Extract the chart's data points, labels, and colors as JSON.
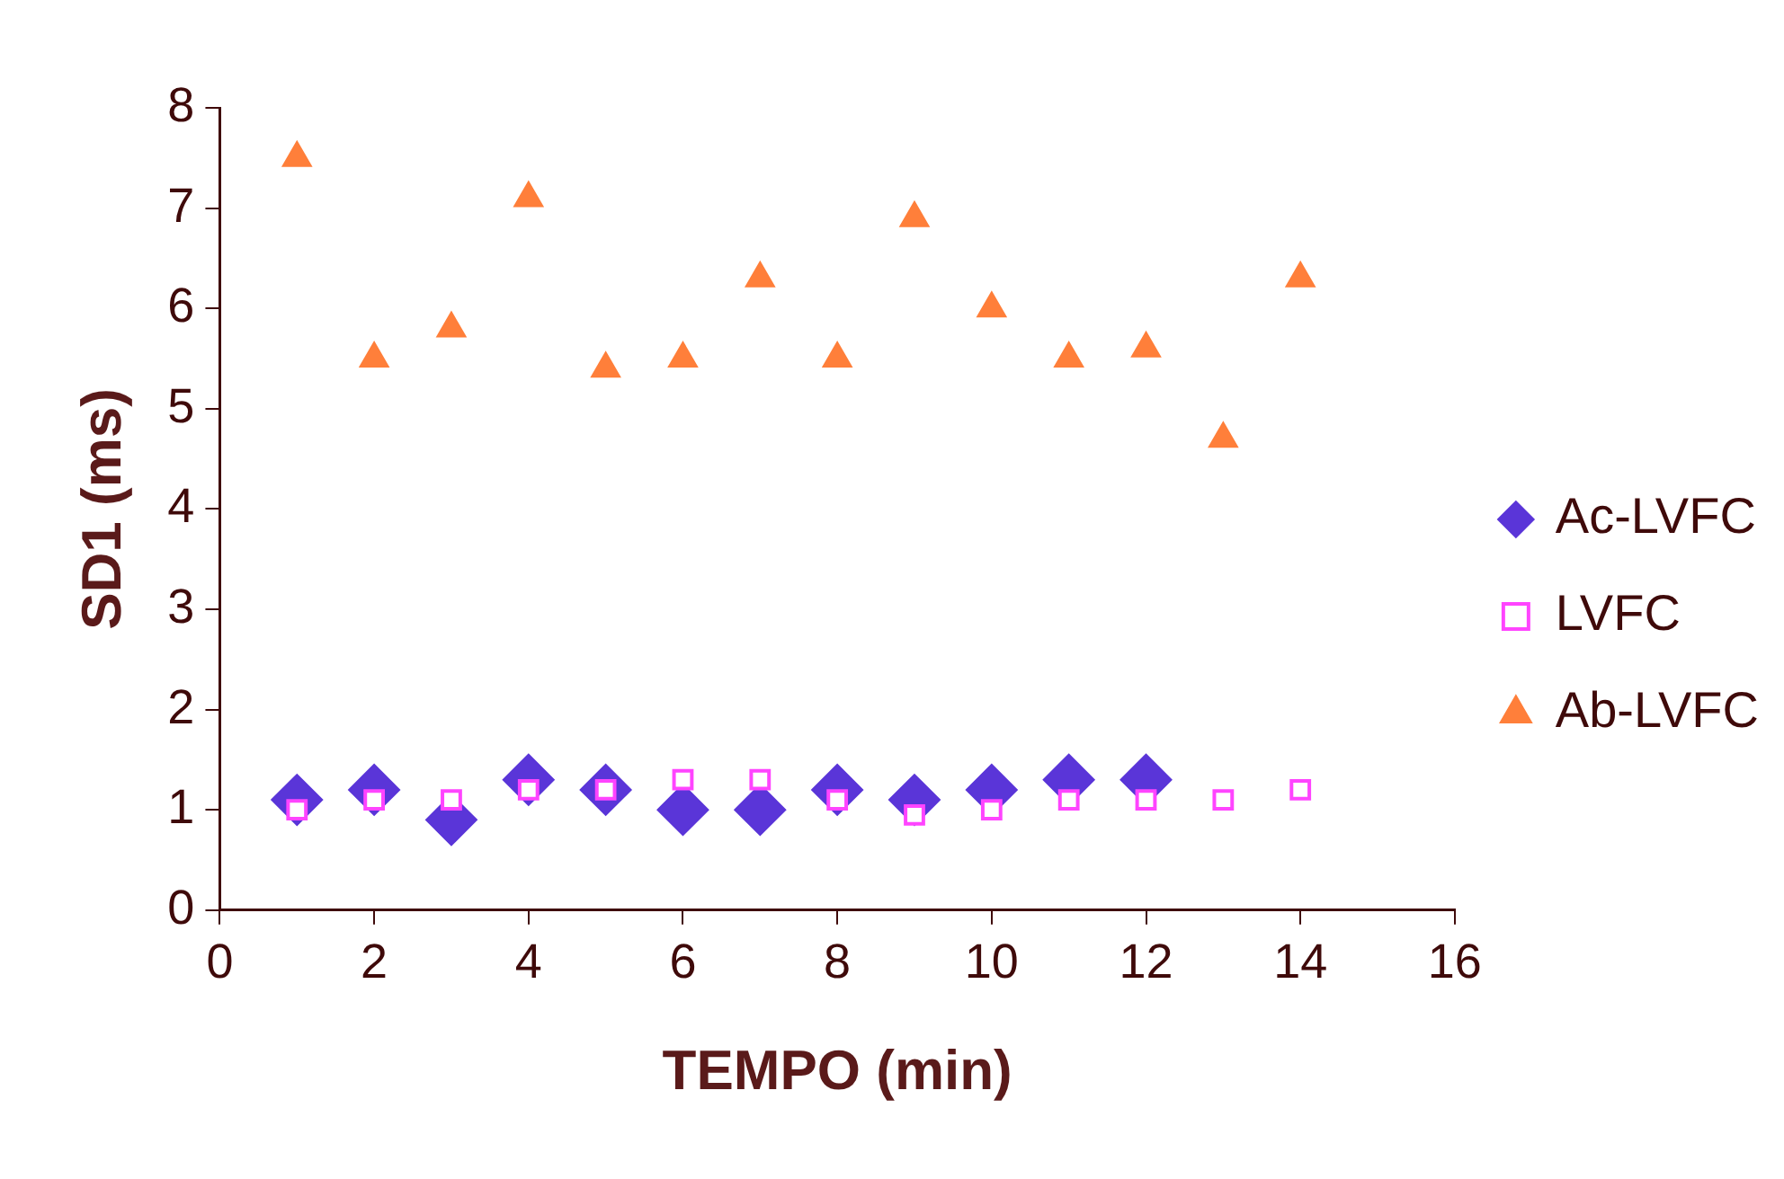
{
  "chart_data": {
    "type": "scatter",
    "xlabel": "TEMPO (min)",
    "ylabel": "SD1 (ms)",
    "xlim": [
      0,
      16
    ],
    "xticks": [
      0,
      2,
      4,
      6,
      8,
      10,
      12,
      14,
      16
    ],
    "ylim": [
      0,
      8
    ],
    "yticks": [
      0,
      1,
      2,
      3,
      4,
      5,
      6,
      7,
      8
    ],
    "grid": false,
    "legend": "right",
    "series": [
      {
        "name": "Ac-LVFC",
        "color": "#5a35d8",
        "marker": "diamond",
        "x": [
          1,
          2,
          3,
          4,
          5,
          6,
          7,
          8,
          9,
          10,
          11,
          12
        ],
        "values": [
          1.1,
          1.2,
          0.9,
          1.3,
          1.2,
          1.0,
          1.0,
          1.2,
          1.1,
          1.2,
          1.3,
          1.3
        ]
      },
      {
        "name": "LVFC",
        "color": "#ff44ff",
        "marker": "square",
        "x": [
          1,
          2,
          3,
          4,
          5,
          6,
          7,
          8,
          9,
          10,
          11,
          12,
          13,
          14
        ],
        "values": [
          1.0,
          1.1,
          1.1,
          1.2,
          1.2,
          1.3,
          1.3,
          1.1,
          0.95,
          1.0,
          1.1,
          1.1,
          1.1,
          1.2
        ]
      },
      {
        "name": "Ab-LVFC",
        "color": "#ff7f3a",
        "marker": "triangle",
        "x": [
          1,
          2,
          3,
          4,
          5,
          6,
          7,
          8,
          9,
          10,
          11,
          12,
          13,
          14
        ],
        "values": [
          7.5,
          5.5,
          5.8,
          7.1,
          5.4,
          5.5,
          6.3,
          5.5,
          6.9,
          6.0,
          5.5,
          5.6,
          4.7,
          6.3
        ]
      }
    ]
  }
}
